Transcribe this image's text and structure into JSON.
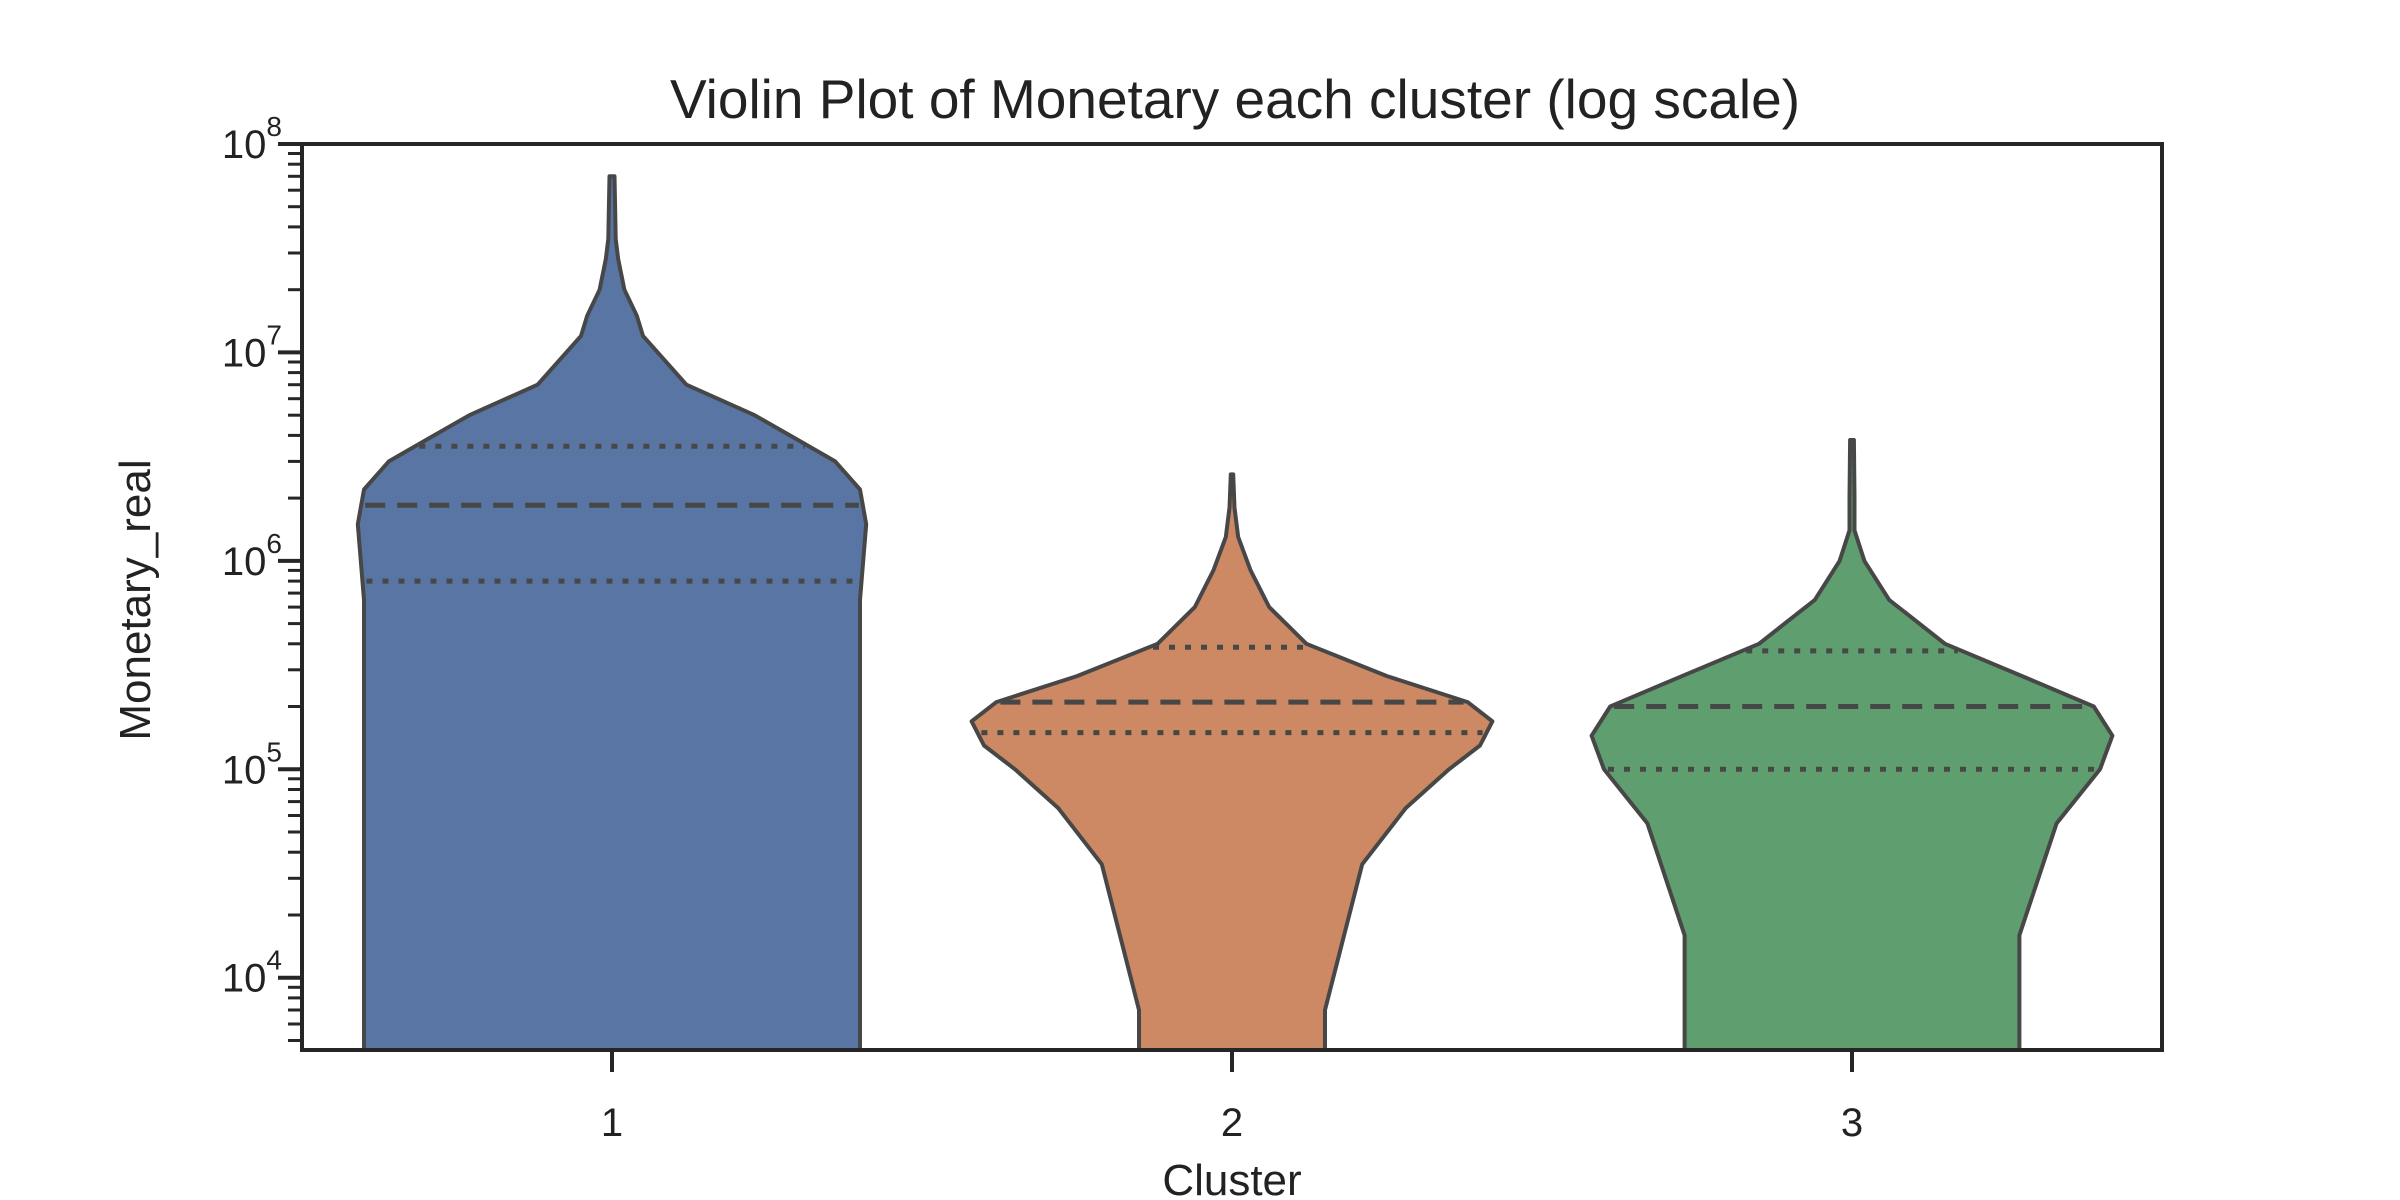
{
  "chart_data": {
    "type": "violin",
    "title": "Violin Plot of Monetary each cluster (log scale)",
    "xlabel": "Cluster",
    "ylabel": "Monetary_real",
    "yscale": "log",
    "ylim": [
      4500,
      100000000
    ],
    "categories": [
      "1",
      "2",
      "3"
    ],
    "y_ticks": [
      {
        "base": "10",
        "exp": "4",
        "value": 10000
      },
      {
        "base": "10",
        "exp": "5",
        "value": 100000
      },
      {
        "base": "10",
        "exp": "6",
        "value": 1000000
      },
      {
        "base": "10",
        "exp": "7",
        "value": 10000000
      },
      {
        "base": "10",
        "exp": "8",
        "value": 100000000
      }
    ],
    "grid": false,
    "inner": "quartile",
    "series": [
      {
        "category": "1",
        "color": "#5975a4",
        "q1": 800000,
        "median": 1850000,
        "q3": 3550000,
        "max": 70000000,
        "profile": [
          [
            4500,
            0.4
          ],
          [
            40000,
            0.4
          ],
          [
            650000,
            0.4
          ],
          [
            1500000,
            0.41
          ],
          [
            2200000,
            0.4
          ],
          [
            3000000,
            0.36
          ],
          [
            3800000,
            0.3
          ],
          [
            5000000,
            0.23
          ],
          [
            7000000,
            0.12
          ],
          [
            12000000,
            0.05
          ],
          [
            15000000,
            0.04
          ],
          [
            20000000,
            0.02
          ],
          [
            28000000,
            0.01
          ],
          [
            35000000,
            0.006
          ],
          [
            50000000,
            0.005
          ],
          [
            70000000,
            0.004
          ]
        ]
      },
      {
        "category": "2",
        "color": "#cc8963",
        "q1": 150000,
        "median": 210000,
        "q3": 385000,
        "max": 2600000,
        "profile": [
          [
            4500,
            0.15
          ],
          [
            7000,
            0.15
          ],
          [
            35000,
            0.21
          ],
          [
            65000,
            0.28
          ],
          [
            100000,
            0.35
          ],
          [
            130000,
            0.4
          ],
          [
            170000,
            0.42
          ],
          [
            210000,
            0.38
          ],
          [
            280000,
            0.25
          ],
          [
            400000,
            0.12
          ],
          [
            600000,
            0.06
          ],
          [
            900000,
            0.03
          ],
          [
            1300000,
            0.01
          ],
          [
            1800000,
            0.004
          ],
          [
            2600000,
            0.002
          ]
        ]
      },
      {
        "category": "3",
        "color": "#5f9e6e",
        "q1": 100000,
        "median": 200000,
        "q3": 370000,
        "max": 3800000,
        "profile": [
          [
            4500,
            0.27
          ],
          [
            16000,
            0.27
          ],
          [
            55000,
            0.33
          ],
          [
            100000,
            0.4
          ],
          [
            145000,
            0.42
          ],
          [
            200000,
            0.39
          ],
          [
            260000,
            0.3
          ],
          [
            400000,
            0.15
          ],
          [
            650000,
            0.06
          ],
          [
            1000000,
            0.02
          ],
          [
            1400000,
            0.004
          ],
          [
            2000000,
            0.004
          ],
          [
            3800000,
            0.003
          ]
        ]
      }
    ]
  }
}
